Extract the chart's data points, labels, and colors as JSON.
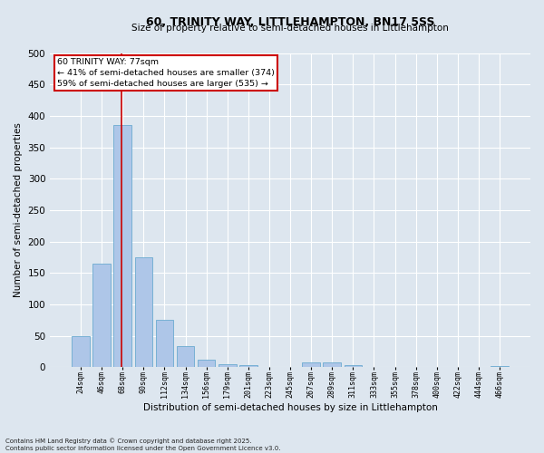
{
  "title": "60, TRINITY WAY, LITTLEHAMPTON, BN17 5SS",
  "subtitle": "Size of property relative to semi-detached houses in Littlehampton",
  "xlabel": "Distribution of semi-detached houses by size in Littlehampton",
  "ylabel": "Number of semi-detached properties",
  "categories": [
    "24sqm",
    "46sqm",
    "68sqm",
    "90sqm",
    "112sqm",
    "134sqm",
    "156sqm",
    "179sqm",
    "201sqm",
    "223sqm",
    "245sqm",
    "267sqm",
    "289sqm",
    "311sqm",
    "333sqm",
    "355sqm",
    "378sqm",
    "400sqm",
    "422sqm",
    "444sqm",
    "466sqm"
  ],
  "values": [
    50,
    165,
    385,
    175,
    75,
    33,
    12,
    5,
    3,
    0,
    0,
    8,
    7,
    3,
    0,
    0,
    0,
    0,
    0,
    0,
    2
  ],
  "bar_color": "#aec6e8",
  "bar_edge_color": "#6baad0",
  "vline_color": "#cc0000",
  "annotation_title": "60 TRINITY WAY: 77sqm",
  "annotation_line1": "← 41% of semi-detached houses are smaller (374)",
  "annotation_line2": "59% of semi-detached houses are larger (535) →",
  "annotation_box_color": "#cc0000",
  "ylim": [
    0,
    500
  ],
  "yticks": [
    0,
    50,
    100,
    150,
    200,
    250,
    300,
    350,
    400,
    450,
    500
  ],
  "bg_color": "#dde6ef",
  "plot_bg_color": "#dde6ef",
  "fig_bg_color": "#dde6ef",
  "grid_color": "#ffffff",
  "footer1": "Contains HM Land Registry data © Crown copyright and database right 2025.",
  "footer2": "Contains public sector information licensed under the Open Government Licence v3.0."
}
